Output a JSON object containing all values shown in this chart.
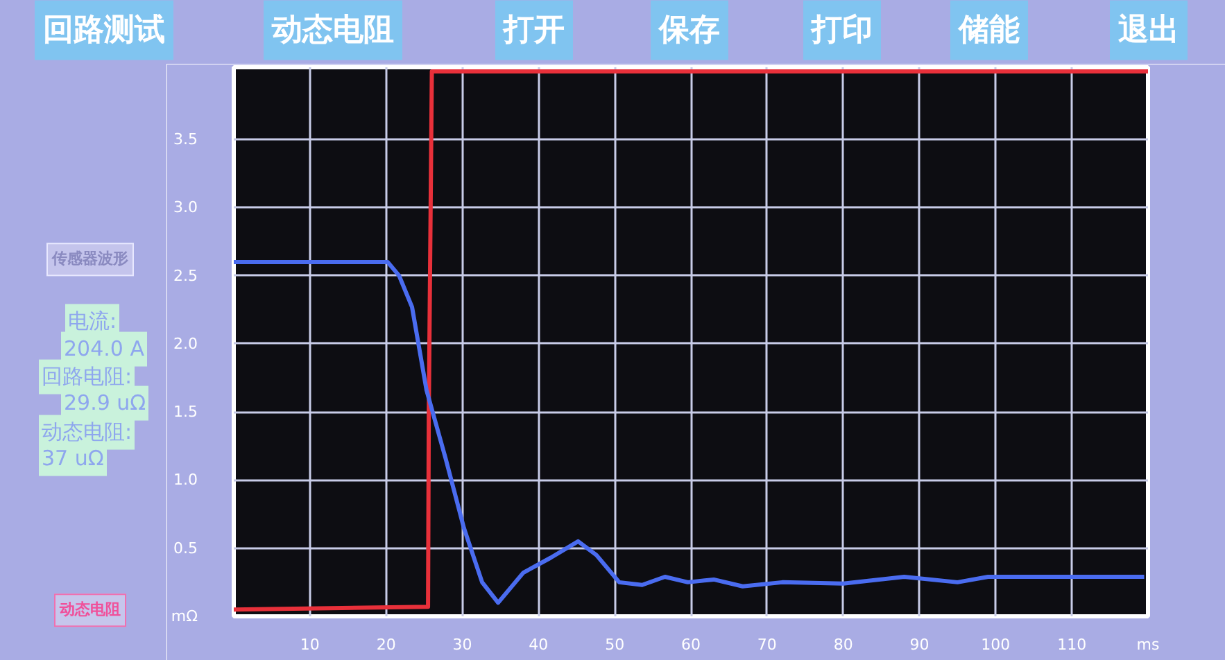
{
  "chart_data": {
    "type": "line",
    "xlim": [
      0,
      120
    ],
    "ylim": [
      0,
      4.03
    ],
    "xticks": [
      10,
      20,
      30,
      40,
      50,
      60,
      70,
      80,
      90,
      100,
      110,
      {
        "value": 120,
        "label": "ms"
      }
    ],
    "yticks": [
      {
        "value": 0,
        "label": "mΩ"
      },
      0.5,
      {
        "value": 1,
        "label": "1.0"
      },
      1.5,
      {
        "value": 2,
        "label": "2.0"
      },
      2.5,
      {
        "value": 3,
        "label": "3.0"
      },
      3.5
    ],
    "grid": true,
    "marker": "none",
    "line_style": "solid",
    "series": [
      {
        "color": "#e8303a",
        "x": [
          0,
          25.5,
          25.6,
          26,
          120
        ],
        "values": [
          0.05,
          0.07,
          1.5,
          4.0,
          4.0
        ]
      },
      {
        "color": "#4a6cf0",
        "x": [
          0,
          10,
          20.2,
          21.7,
          23.4,
          25.3,
          27.8,
          30.2,
          32.6,
          34.7,
          38.0,
          41.6,
          45.2,
          47.6,
          50.6,
          53.6,
          56.6,
          59.6,
          63,
          66.8,
          72,
          80,
          88,
          95,
          99,
          119.5
        ],
        "values": [
          2.6,
          2.6,
          2.6,
          2.5,
          2.27,
          1.66,
          1.16,
          0.65,
          0.25,
          0.1,
          0.32,
          0.43,
          0.55,
          0.45,
          0.25,
          0.23,
          0.29,
          0.25,
          0.27,
          0.22,
          0.25,
          0.24,
          0.29,
          0.25,
          0.29,
          0.29
        ]
      }
    ],
    "annotations": [
      "回路测试",
      "动态电阻",
      "打开",
      "保存",
      "打印",
      "储能",
      "退出",
      "传感器波形",
      "电流:",
      "204.0 A",
      "回路电阻:",
      "29.9 uΩ",
      "动态电阻:",
      "37 uΩ",
      "动态电阻"
    ]
  }
}
